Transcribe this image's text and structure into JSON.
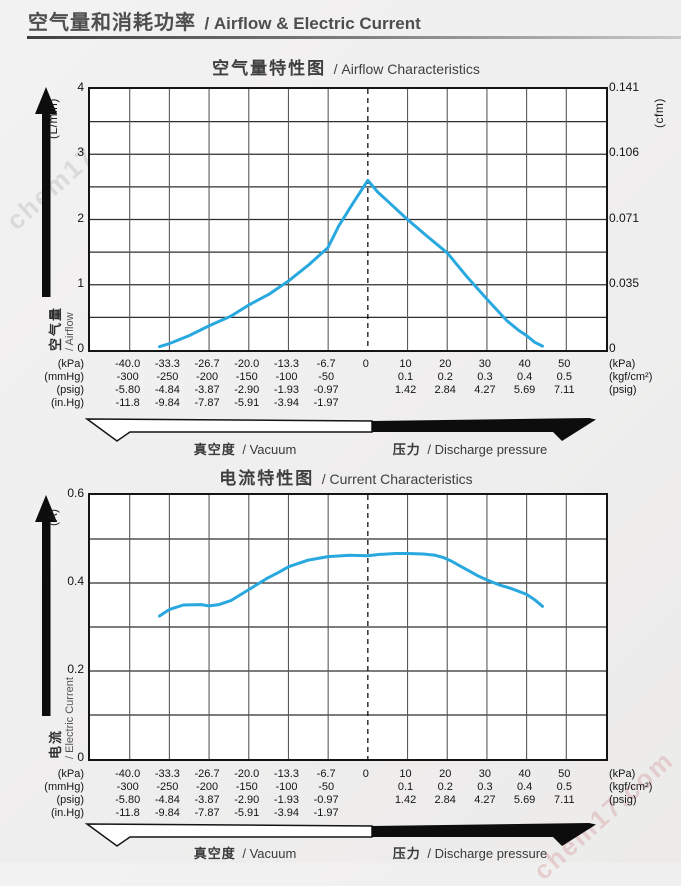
{
  "header": {
    "title_zh": "空气量和消耗功率",
    "title_en": "/ Airflow & Electric Current"
  },
  "watermark": {
    "text": "chem17.com"
  },
  "charts": [
    {
      "title_zh": "空气量特性图",
      "title_en": "/ Airflow Characteristics",
      "y_unit": "(L/min)",
      "y_axis_zh": "空气量",
      "y_axis_en": "/ Airflow",
      "y_tick_values": [
        4,
        3,
        2,
        1,
        0
      ],
      "y_tick_labels": [
        "4",
        "3",
        "2",
        "1",
        "0"
      ],
      "y_right_unit": "(cfm)",
      "y_right_tick_labels": [
        "0.141",
        "0.106",
        "0.071",
        "0.035",
        "0"
      ]
    },
    {
      "title_zh": "电流特性图",
      "title_en": "/ Current Characteristics",
      "y_unit": "(A)",
      "y_axis_zh": "电流",
      "y_axis_en": "/ Electric Current",
      "y_tick_values": [
        0.6,
        0.4,
        0.2,
        0
      ],
      "y_tick_labels": [
        "0.6",
        "0.4",
        "0.2",
        "0"
      ],
      "y_right_unit": "",
      "y_right_tick_labels": []
    }
  ],
  "axis_shared": {
    "unit_left_col": [
      "(kPa)",
      "(mmHg)",
      "(psig)",
      "(in.Hg)"
    ],
    "vacuum_cols": [
      [
        "-40.0",
        "-300",
        "-5.80",
        "-11.8"
      ],
      [
        "-33.3",
        "-250",
        "-4.84",
        "-9.84"
      ],
      [
        "-26.7",
        "-200",
        "-3.87",
        "-7.87"
      ],
      [
        "-20.0",
        "-150",
        "-2.90",
        "-5.91"
      ],
      [
        "-13.3",
        "-100",
        "-1.93",
        "-3.94"
      ],
      [
        "-6.7",
        "-50",
        "-0.97",
        "-1.97"
      ]
    ],
    "zero_label": "0",
    "pressure_cols": [
      [
        "10",
        "0.1",
        "1.42"
      ],
      [
        "20",
        "0.2",
        "2.84"
      ],
      [
        "30",
        "0.3",
        "4.27"
      ],
      [
        "40",
        "0.4",
        "5.69"
      ],
      [
        "50",
        "0.5",
        "7.11"
      ]
    ],
    "unit_right_col": [
      "(kPa)",
      "(kgf/cm²)",
      "(psig)"
    ],
    "vacuum_label_zh": "真空度",
    "vacuum_label_en": "/ Vacuum",
    "pressure_label_zh": "压力",
    "pressure_label_en": "/ Discharge pressure"
  },
  "chart_data": [
    {
      "type": "line",
      "title": "空气量特性图 / Airflow Characteristics",
      "ylabel": "空气量 / Airflow (L/min)",
      "y2label": "(cfm)",
      "xlabel": "真空度 / Vacuum — 压力 / Discharge pressure (kPa)",
      "ylim": [
        0,
        4
      ],
      "y_grid_step": 0.5,
      "x_divisions": 13,
      "x_tick_kpa": [
        -40,
        -33.3,
        -26.7,
        -20,
        -13.3,
        -6.7,
        0,
        10,
        20,
        30,
        40,
        50
      ],
      "line_color": "#29a8e0",
      "x": [
        -35,
        -33.3,
        -30,
        -26.7,
        -23,
        -20,
        -16.5,
        -13.3,
        -10,
        -6.7,
        -4.9,
        -2.5,
        0,
        2.5,
        5,
        10,
        15,
        20,
        25,
        30,
        35,
        38,
        40,
        42,
        44
      ],
      "y": [
        0.05,
        0.1,
        0.22,
        0.37,
        0.52,
        0.69,
        0.86,
        1.06,
        1.3,
        1.57,
        1.9,
        2.25,
        2.6,
        2.42,
        2.28,
        2.0,
        1.74,
        1.49,
        1.12,
        0.78,
        0.45,
        0.3,
        0.22,
        0.12,
        0.06
      ]
    },
    {
      "type": "line",
      "title": "电流特性图 / Current Characteristics",
      "ylabel": "电流 / Electric Current (A)",
      "xlabel": "真空度 / Vacuum — 压力 / Discharge pressure (kPa)",
      "ylim": [
        0,
        0.6
      ],
      "y_grid_step": 0.1,
      "x_divisions": 13,
      "x_tick_kpa": [
        -40,
        -33.3,
        -26.7,
        -20,
        -13.3,
        -6.7,
        0,
        10,
        20,
        30,
        40,
        50
      ],
      "line_color": "#29a8e0",
      "x": [
        -35,
        -33.3,
        -31,
        -28,
        -26.7,
        -25,
        -23,
        -20,
        -17,
        -15,
        -13.3,
        -10,
        -6.7,
        -3,
        0,
        3,
        7,
        10,
        14,
        17,
        19,
        21,
        23,
        25,
        28,
        30,
        33,
        36,
        40,
        42,
        44
      ],
      "y": [
        0.325,
        0.34,
        0.35,
        0.351,
        0.348,
        0.351,
        0.36,
        0.385,
        0.41,
        0.424,
        0.437,
        0.452,
        0.46,
        0.463,
        0.462,
        0.465,
        0.467,
        0.467,
        0.466,
        0.463,
        0.458,
        0.45,
        0.44,
        0.43,
        0.415,
        0.407,
        0.396,
        0.388,
        0.374,
        0.362,
        0.347
      ]
    }
  ]
}
